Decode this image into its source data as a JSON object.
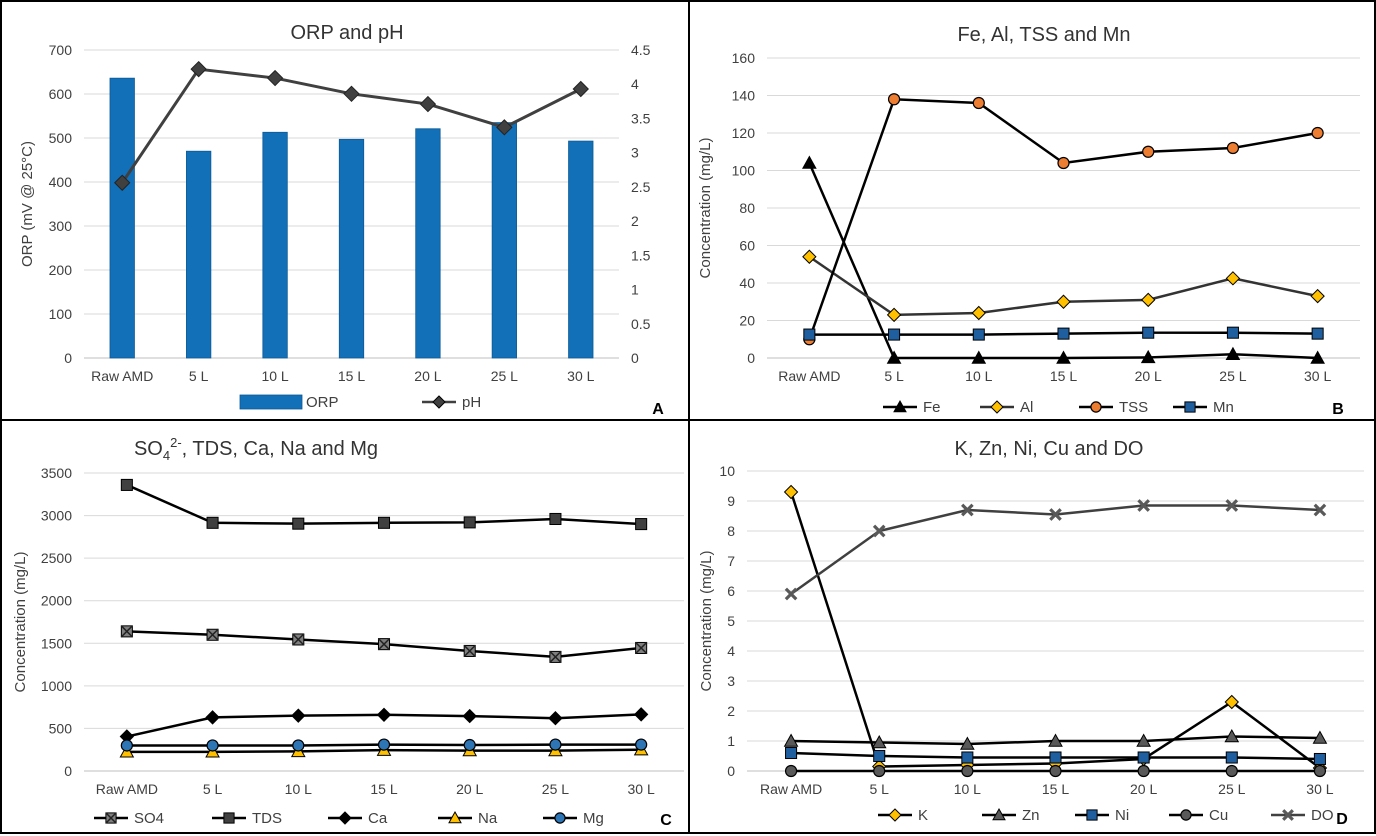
{
  "chart_data": [
    {
      "panel": "A",
      "type": "bar+line",
      "title": "ORP and pH",
      "ylabel": "ORP (mV @ 25°C)",
      "categories": [
        "Raw AMD",
        "5 L",
        "10 L",
        "15 L",
        "20 L",
        "25 L",
        "30 L"
      ],
      "ylim": [
        0,
        700
      ],
      "yticks": [
        "0",
        "100",
        "200",
        "300",
        "400",
        "500",
        "600",
        "700"
      ],
      "y2lim": [
        0,
        4.5
      ],
      "y2ticks": [
        "0",
        "0.5",
        "1",
        "1.5",
        "2",
        "2.5",
        "3",
        "3.5",
        "4",
        "4.5"
      ],
      "series": [
        {
          "name": "ORP",
          "kind": "bar",
          "axis": "left",
          "color": "#1170b8",
          "values": [
            636,
            470,
            513,
            497,
            521,
            535,
            493
          ]
        },
        {
          "name": "pH",
          "kind": "line",
          "axis": "right",
          "color": "#404040",
          "marker": "diamond",
          "values": [
            2.56,
            4.22,
            4.09,
            3.86,
            3.71,
            3.37,
            3.93
          ]
        }
      ],
      "grid": true,
      "legend": "bottom"
    },
    {
      "panel": "B",
      "type": "line",
      "title": "Fe, Al, TSS and Mn",
      "ylabel": "Concentration (mg/L)",
      "categories": [
        "Raw AMD",
        "5 L",
        "10 L",
        "15 L",
        "20 L",
        "25 L",
        "30 L"
      ],
      "ylim": [
        0,
        160
      ],
      "yticks": [
        "0",
        "20",
        "40",
        "60",
        "80",
        "100",
        "120",
        "140",
        "160"
      ],
      "series": [
        {
          "name": "Fe",
          "marker": "triangle",
          "line": "#000000",
          "fill": "#000000",
          "values": [
            104,
            0,
            0,
            0,
            0.3,
            2,
            0
          ]
        },
        {
          "name": "Al",
          "marker": "diamond",
          "line": "#333333",
          "fill": "#ffc000",
          "values": [
            54,
            23,
            24,
            30,
            31,
            42.5,
            33
          ]
        },
        {
          "name": "TSS",
          "marker": "circle",
          "line": "#000000",
          "fill": "#ed7d31",
          "values": [
            10,
            138,
            136,
            104,
            110,
            112,
            120
          ]
        },
        {
          "name": "Mn",
          "marker": "square",
          "line": "#000000",
          "fill": "#1f5fa0",
          "values": [
            12.5,
            12.5,
            12.5,
            13,
            13.5,
            13.5,
            13
          ]
        }
      ],
      "grid": true,
      "legend": "bottom"
    },
    {
      "panel": "C",
      "type": "line",
      "title_parts": [
        "SO",
        "4",
        "2-",
        ", TDS, Ca, Na and Mg"
      ],
      "ylabel": "Concentration (mg/L)",
      "categories": [
        "Raw AMD",
        "5 L",
        "10 L",
        "15 L",
        "20 L",
        "25 L",
        "30 L"
      ],
      "ylim": [
        0,
        3500
      ],
      "yticks": [
        "0",
        "500",
        "1000",
        "1500",
        "2000",
        "2500",
        "3000",
        "3500"
      ],
      "series": [
        {
          "name": "SO4",
          "marker": "xsquare",
          "line": "#000000",
          "fill": "#7f7f7f",
          "values": [
            1640,
            1600,
            1545,
            1490,
            1410,
            1340,
            1445
          ]
        },
        {
          "name": "TDS",
          "marker": "square",
          "line": "#000000",
          "fill": "#404040",
          "values": [
            3360,
            2915,
            2905,
            2915,
            2920,
            2960,
            2900
          ]
        },
        {
          "name": "Ca",
          "marker": "diamond",
          "line": "#000000",
          "fill": "#000000",
          "values": [
            405,
            630,
            650,
            660,
            645,
            620,
            665
          ]
        },
        {
          "name": "Na",
          "marker": "triangle",
          "line": "#000000",
          "fill": "#ffc000",
          "values": [
            225,
            225,
            230,
            245,
            240,
            240,
            250
          ]
        },
        {
          "name": "Mg",
          "marker": "circle",
          "line": "#000000",
          "fill": "#2e75b6",
          "values": [
            300,
            300,
            300,
            310,
            305,
            310,
            310
          ]
        }
      ],
      "grid": true,
      "legend": "bottom"
    },
    {
      "panel": "D",
      "type": "line",
      "title": "K, Zn, Ni, Cu and DO",
      "ylabel": "Concentration (mg/L)",
      "categories": [
        "Raw AMD",
        "5 L",
        "10 L",
        "15 L",
        "20 L",
        "25 L",
        "30 L"
      ],
      "ylim": [
        0,
        10
      ],
      "yticks": [
        "0",
        "1",
        "2",
        "3",
        "4",
        "5",
        "6",
        "7",
        "8",
        "9",
        "10"
      ],
      "series": [
        {
          "name": "K",
          "marker": "diamond",
          "line": "#000000",
          "fill": "#ffc000",
          "values": [
            9.3,
            0.15,
            0.2,
            0.25,
            0.4,
            2.3,
            0.1
          ]
        },
        {
          "name": "Zn",
          "marker": "triangle",
          "line": "#000000",
          "fill": "#595959",
          "values": [
            1.0,
            0.95,
            0.9,
            1.0,
            1.0,
            1.15,
            1.1
          ]
        },
        {
          "name": "Ni",
          "marker": "square",
          "line": "#000000",
          "fill": "#1f5fa0",
          "values": [
            0.6,
            0.5,
            0.45,
            0.45,
            0.45,
            0.45,
            0.4
          ]
        },
        {
          "name": "Cu",
          "marker": "circle",
          "line": "#000000",
          "fill": "#595959",
          "values": [
            0,
            0,
            0,
            0,
            0,
            0,
            0
          ]
        },
        {
          "name": "DO",
          "marker": "xmark",
          "line": "#404040",
          "fill": "#595959",
          "values": [
            5.9,
            8.0,
            8.7,
            8.55,
            8.85,
            8.85,
            8.7
          ]
        }
      ],
      "grid": true,
      "legend": "bottom"
    }
  ]
}
